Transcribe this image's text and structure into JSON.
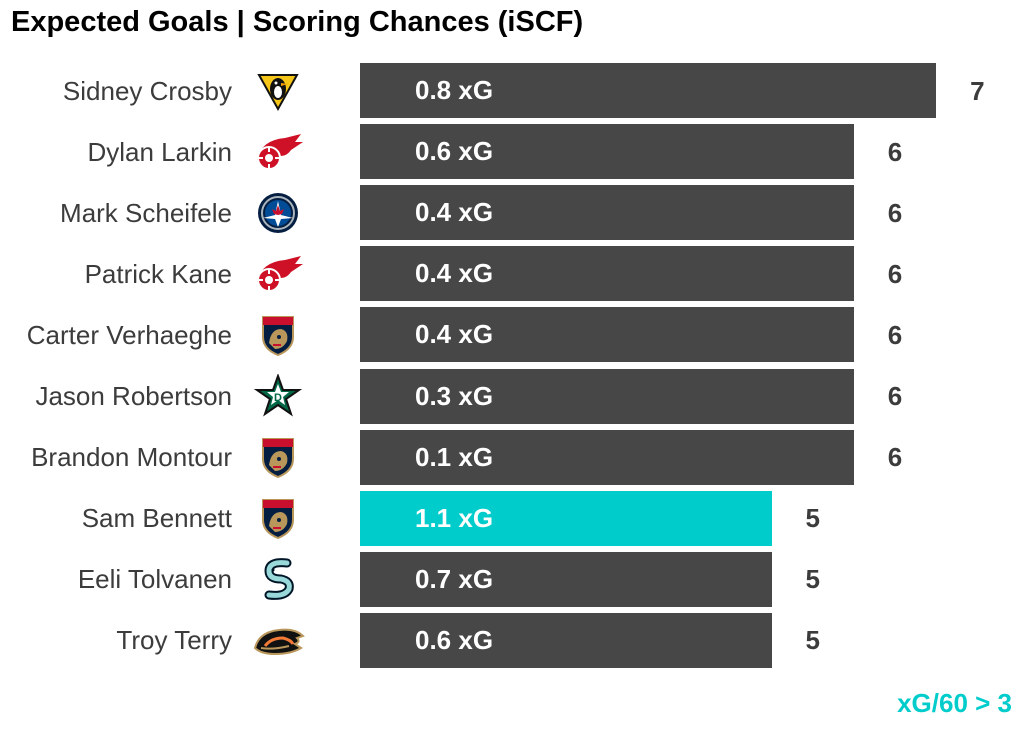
{
  "chart_data": {
    "type": "bar",
    "title": "Expected Goals | Scoring Chances (iSCF)",
    "note": "xG/60 > 3",
    "xlim": [
      0,
      7
    ],
    "colors": {
      "default": "#474747",
      "highlight": "#00cccc",
      "note": "#00cccc"
    },
    "rows": [
      {
        "player": "Sidney Crosby",
        "team_logo": "penguins-logo",
        "value": 7,
        "label": "0.8 xG",
        "highlight": false
      },
      {
        "player": "Dylan Larkin",
        "team_logo": "red-wings-logo",
        "value": 6,
        "label": "0.6 xG",
        "highlight": false
      },
      {
        "player": "Mark Scheifele",
        "team_logo": "jets-logo",
        "value": 6,
        "label": "0.4 xG",
        "highlight": false
      },
      {
        "player": "Patrick Kane",
        "team_logo": "red-wings-logo",
        "value": 6,
        "label": "0.4 xG",
        "highlight": false
      },
      {
        "player": "Carter Verhaeghe",
        "team_logo": "panthers-logo",
        "value": 6,
        "label": "0.4 xG",
        "highlight": false
      },
      {
        "player": "Jason Robertson",
        "team_logo": "stars-logo",
        "value": 6,
        "label": "0.3 xG",
        "highlight": false
      },
      {
        "player": "Brandon Montour",
        "team_logo": "panthers-logo",
        "value": 6,
        "label": "0.1 xG",
        "highlight": false
      },
      {
        "player": "Sam Bennett",
        "team_logo": "panthers-logo",
        "value": 5,
        "label": "1.1 xG",
        "highlight": true
      },
      {
        "player": "Eeli Tolvanen",
        "team_logo": "kraken-logo",
        "value": 5,
        "label": "0.7 xG",
        "highlight": false
      },
      {
        "player": "Troy Terry",
        "team_logo": "ducks-logo",
        "value": 5,
        "label": "0.6 xG",
        "highlight": false
      }
    ]
  }
}
